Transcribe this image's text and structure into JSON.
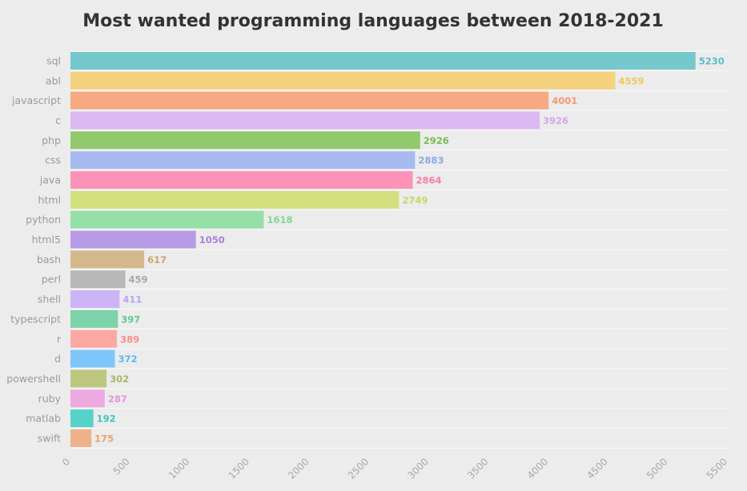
{
  "chart_data": {
    "type": "bar",
    "orientation": "horizontal",
    "title": "Most wanted programming languages between 2018-2021",
    "xlabel": "",
    "ylabel": "",
    "xlim": [
      0,
      5500
    ],
    "xticks": [
      0,
      500,
      1000,
      1500,
      2000,
      2500,
      3000,
      3500,
      4000,
      4500,
      5000,
      5500
    ],
    "grid": true,
    "legend": "none",
    "categories": [
      "sql",
      "abl",
      "javascript",
      "c",
      "php",
      "css",
      "java",
      "html",
      "python",
      "html5",
      "bash",
      "perl",
      "shell",
      "typescript",
      "r",
      "d",
      "powershell",
      "ruby",
      "matlab",
      "swift"
    ],
    "values": [
      5230,
      4559,
      4001,
      3926,
      2926,
      2883,
      2864,
      2749,
      1618,
      1050,
      617,
      459,
      411,
      397,
      389,
      372,
      302,
      287,
      192,
      175
    ],
    "colors": [
      "#75c8cc",
      "#f5d27e",
      "#f7a982",
      "#dcb9f2",
      "#91c96c",
      "#a6baf0",
      "#fb93b8",
      "#d3e07f",
      "#95e0a8",
      "#b89be6",
      "#d4b88c",
      "#b8b8b8",
      "#ccb5f7",
      "#7dd3a7",
      "#fca9a6",
      "#7ec6fa",
      "#bdc77f",
      "#eeaae0",
      "#56d2cb",
      "#edb289"
    ],
    "label_colors": [
      "#5bbfc4",
      "#f2c85e",
      "#f29a6e",
      "#d2a8ef",
      "#79bd4f",
      "#8aa8ec",
      "#f77da9",
      "#c6d762",
      "#7fd796",
      "#a583de",
      "#caa571",
      "#a8a8a8",
      "#bda2f5",
      "#5ec993",
      "#f88f8b",
      "#5eb7f7",
      "#aab765",
      "#e794d6",
      "#3fc6be",
      "#e8a06f"
    ]
  }
}
